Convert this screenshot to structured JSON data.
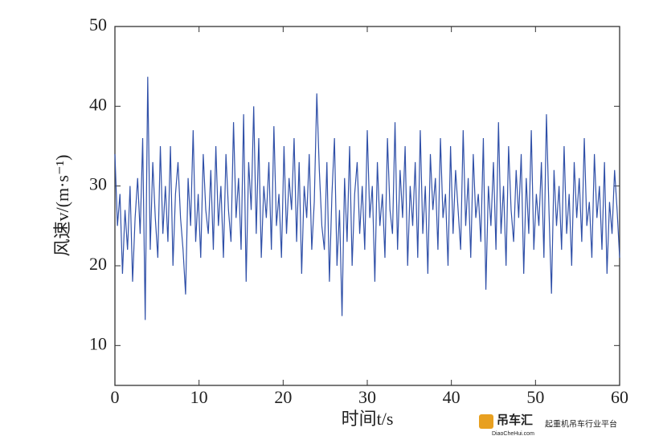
{
  "chart_data": {
    "type": "line",
    "xlabel": "时间t/s",
    "ylabel": "风速v/(m·s⁻¹)",
    "xlim": [
      0,
      60
    ],
    "xticks": [
      0,
      10,
      20,
      30,
      40,
      50,
      60
    ],
    "ylim": [
      5,
      50
    ],
    "yticks": [
      10,
      20,
      30,
      40,
      50
    ],
    "x": [
      0,
      0.3,
      0.6,
      0.9,
      1.2,
      1.5,
      1.8,
      2.1,
      2.4,
      2.7,
      3,
      3.3,
      3.6,
      3.9,
      4.2,
      4.5,
      4.8,
      5.1,
      5.4,
      5.7,
      6,
      6.3,
      6.6,
      6.9,
      7.2,
      7.5,
      7.8,
      8.1,
      8.4,
      8.7,
      9,
      9.3,
      9.6,
      9.9,
      10.2,
      10.5,
      10.8,
      11.1,
      11.4,
      11.7,
      12,
      12.3,
      12.6,
      12.9,
      13.2,
      13.5,
      13.8,
      14.1,
      14.4,
      14.7,
      15,
      15.3,
      15.6,
      15.9,
      16.2,
      16.5,
      16.8,
      17.1,
      17.4,
      17.7,
      18,
      18.3,
      18.6,
      18.9,
      19.2,
      19.5,
      19.8,
      20.1,
      20.4,
      20.7,
      21,
      21.3,
      21.6,
      21.9,
      22.2,
      22.5,
      22.8,
      23.1,
      23.4,
      23.7,
      24,
      24.3,
      24.6,
      24.9,
      25.2,
      25.5,
      25.8,
      26.1,
      26.4,
      26.7,
      27,
      27.3,
      27.6,
      27.9,
      28.2,
      28.5,
      28.8,
      29.1,
      29.4,
      29.7,
      30,
      30.3,
      30.6,
      30.9,
      31.2,
      31.5,
      31.8,
      32.1,
      32.4,
      32.7,
      33,
      33.3,
      33.6,
      33.9,
      34.2,
      34.5,
      34.8,
      35.1,
      35.4,
      35.7,
      36,
      36.3,
      36.6,
      36.9,
      37.2,
      37.5,
      37.8,
      38.1,
      38.4,
      38.7,
      39,
      39.3,
      39.6,
      39.9,
      40.2,
      40.5,
      40.8,
      41.1,
      41.4,
      41.7,
      42,
      42.3,
      42.6,
      42.9,
      43.2,
      43.5,
      43.8,
      44.1,
      44.4,
      44.7,
      45,
      45.3,
      45.6,
      45.9,
      46.2,
      46.5,
      46.8,
      47.1,
      47.4,
      47.7,
      48,
      48.3,
      48.6,
      48.9,
      49.2,
      49.5,
      49.8,
      50.1,
      50.4,
      50.7,
      51,
      51.3,
      51.6,
      51.9,
      52.2,
      52.5,
      52.8,
      53.1,
      53.4,
      53.7,
      54,
      54.3,
      54.6,
      54.9,
      55.2,
      55.5,
      55.8,
      56.1,
      56.4,
      56.7,
      57,
      57.3,
      57.6,
      57.9,
      58.2,
      58.5,
      58.8,
      59.1,
      59.4,
      59.7,
      60
    ],
    "series": [
      {
        "color": "#3050a8",
        "values": [
          34,
          25,
          29,
          19,
          27,
          22,
          30,
          18,
          26,
          31,
          24,
          36,
          13.2,
          43.7,
          22,
          33,
          26,
          21,
          35,
          24,
          30,
          23,
          35,
          20,
          29,
          33,
          26,
          22,
          16.4,
          31,
          25,
          37,
          23,
          29,
          21,
          34,
          27,
          24,
          32,
          22,
          35,
          25,
          30,
          21,
          34,
          27,
          23,
          38,
          26,
          31,
          22,
          39,
          18,
          33,
          27,
          40,
          24,
          36,
          21,
          30,
          26,
          33,
          22,
          37.5,
          25,
          29,
          21,
          35,
          24,
          31,
          27,
          36,
          23,
          33,
          19,
          30,
          26,
          34,
          22,
          28,
          41.6,
          32,
          25,
          22,
          33,
          18,
          29,
          36,
          20,
          27,
          13.7,
          31,
          23,
          35,
          20,
          29,
          33,
          24,
          30,
          22,
          37,
          26,
          30,
          18,
          33,
          25,
          29,
          21,
          36,
          27,
          24,
          38,
          22,
          32,
          26,
          35,
          20,
          30,
          25,
          33,
          21,
          37,
          24,
          30,
          19,
          34,
          27,
          31,
          22,
          36,
          26,
          29,
          20,
          35,
          24,
          32,
          27,
          22,
          37,
          25,
          31,
          21,
          34,
          26,
          29,
          23,
          36,
          17,
          30,
          25,
          33,
          22,
          38,
          24,
          30,
          20,
          35,
          27,
          23,
          32,
          26,
          34,
          19,
          31,
          24,
          37,
          22,
          29,
          25,
          33,
          21,
          39,
          27,
          16.5,
          32,
          25,
          30,
          22,
          35,
          24,
          29,
          20,
          33,
          26,
          31,
          23,
          36,
          25,
          28,
          21,
          34,
          26,
          30,
          22,
          33,
          19,
          28,
          24,
          32,
          27,
          21
        ]
      }
    ]
  },
  "watermark": {
    "brand": "吊车汇",
    "site": "DiaoCheHui.com",
    "slogan": "起重机吊车行业平台"
  }
}
